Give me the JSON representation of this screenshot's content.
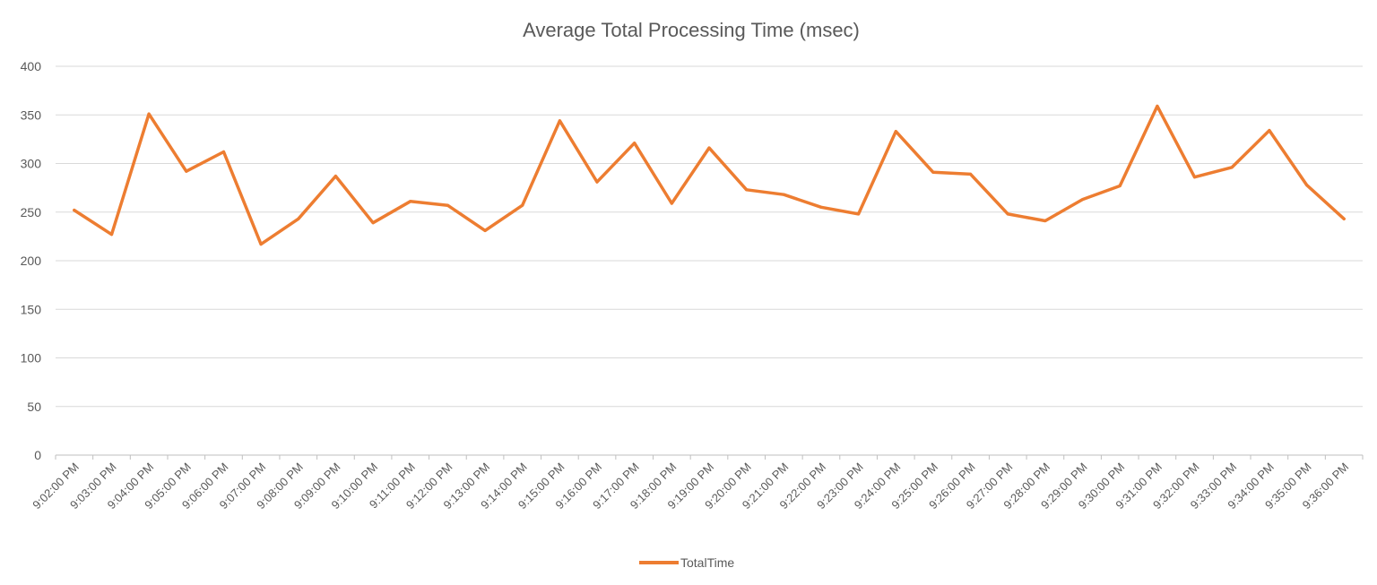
{
  "chart_data": {
    "type": "line",
    "title": "Average Total Processing Time (msec)",
    "xlabel": "",
    "ylabel": "",
    "ylim": [
      0,
      400
    ],
    "y_ticks": [
      0,
      50,
      100,
      150,
      200,
      250,
      300,
      350,
      400
    ],
    "grid": true,
    "legend_position": "bottom",
    "categories": [
      "9:02:00 PM",
      "9:03:00 PM",
      "9:04:00 PM",
      "9:05:00 PM",
      "9:06:00 PM",
      "9:07:00 PM",
      "9:08:00 PM",
      "9:09:00 PM",
      "9:10:00 PM",
      "9:11:00 PM",
      "9:12:00 PM",
      "9:13:00 PM",
      "9:14:00 PM",
      "9:15:00 PM",
      "9:16:00 PM",
      "9:17:00 PM",
      "9:18:00 PM",
      "9:19:00 PM",
      "9:20:00 PM",
      "9:21:00 PM",
      "9:22:00 PM",
      "9:23:00 PM",
      "9:24:00 PM",
      "9:25:00 PM",
      "9:26:00 PM",
      "9:27:00 PM",
      "9:28:00 PM",
      "9:29:00 PM",
      "9:30:00 PM",
      "9:31:00 PM",
      "9:32:00 PM",
      "9:33:00 PM",
      "9:34:00 PM",
      "9:35:00 PM",
      "9:36:00 PM"
    ],
    "series": [
      {
        "name": "TotalTime",
        "color": "#ed7d31",
        "values": [
          252,
          227,
          351,
          292,
          312,
          217,
          243,
          287,
          239,
          261,
          257,
          231,
          257,
          344,
          281,
          321,
          259,
          316,
          273,
          268,
          255,
          248,
          333,
          291,
          289,
          248,
          241,
          263,
          277,
          359,
          286,
          296,
          334,
          278,
          243
        ]
      }
    ]
  }
}
